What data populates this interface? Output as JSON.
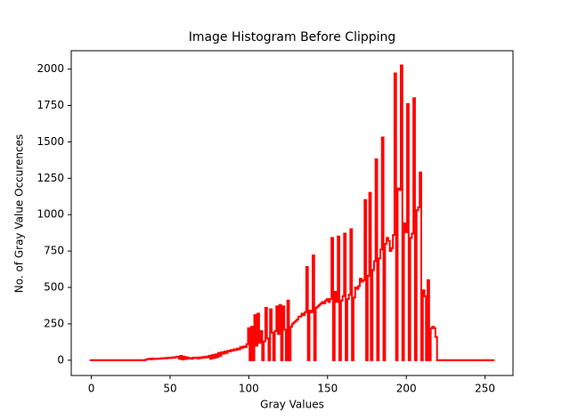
{
  "chart_data": {
    "type": "line",
    "title": "Image Histogram Before Clipping",
    "xlabel": "Gray Values",
    "ylabel": "No. of Gray Value Occurences",
    "step": true,
    "color": "#ff0000",
    "grid": false,
    "xlim": [
      -12.75,
      267.75
    ],
    "xticks": [
      0,
      50,
      100,
      150,
      200,
      250
    ],
    "ylim": [
      -105,
      2126
    ],
    "yticks": [
      0,
      250,
      500,
      750,
      1000,
      1250,
      1500,
      1750,
      2000
    ],
    "x": [
      0,
      1,
      2,
      3,
      4,
      5,
      6,
      7,
      8,
      9,
      10,
      11,
      12,
      13,
      14,
      15,
      16,
      17,
      18,
      19,
      20,
      21,
      22,
      23,
      24,
      25,
      26,
      27,
      28,
      29,
      30,
      31,
      32,
      33,
      34,
      35,
      36,
      37,
      38,
      39,
      40,
      41,
      42,
      43,
      44,
      45,
      46,
      47,
      48,
      49,
      50,
      51,
      52,
      53,
      54,
      55,
      56,
      57,
      58,
      59,
      60,
      61,
      62,
      63,
      64,
      65,
      66,
      67,
      68,
      69,
      70,
      71,
      72,
      73,
      74,
      75,
      76,
      77,
      78,
      79,
      80,
      81,
      82,
      83,
      84,
      85,
      86,
      87,
      88,
      89,
      90,
      91,
      92,
      93,
      94,
      95,
      96,
      97,
      98,
      99,
      100,
      101,
      102,
      103,
      104,
      105,
      106,
      107,
      108,
      109,
      110,
      111,
      112,
      113,
      114,
      115,
      116,
      117,
      118,
      119,
      120,
      121,
      122,
      123,
      124,
      125,
      126,
      127,
      128,
      129,
      130,
      131,
      132,
      133,
      134,
      135,
      136,
      137,
      138,
      139,
      140,
      141,
      142,
      143,
      144,
      145,
      146,
      147,
      148,
      149,
      150,
      151,
      152,
      153,
      154,
      155,
      156,
      157,
      158,
      159,
      160,
      161,
      162,
      163,
      164,
      165,
      166,
      167,
      168,
      169,
      170,
      171,
      172,
      173,
      174,
      175,
      176,
      177,
      178,
      179,
      180,
      181,
      182,
      183,
      184,
      185,
      186,
      187,
      188,
      189,
      190,
      191,
      192,
      193,
      194,
      195,
      196,
      197,
      198,
      199,
      200,
      201,
      202,
      203,
      204,
      205,
      206,
      207,
      208,
      209,
      210,
      211,
      212,
      213,
      214,
      215,
      216,
      217,
      218,
      219,
      220,
      221,
      222,
      223,
      224,
      225,
      226,
      227,
      228,
      229,
      230,
      231,
      232,
      233,
      234,
      235,
      236,
      237,
      238,
      239,
      240,
      241,
      242,
      243,
      244,
      245,
      246,
      247,
      248,
      249,
      250,
      251,
      252,
      253,
      254,
      255
    ],
    "values": [
      0,
      0,
      0,
      0,
      0,
      0,
      0,
      0,
      0,
      0,
      0,
      0,
      0,
      0,
      0,
      0,
      0,
      0,
      0,
      0,
      0,
      0,
      0,
      0,
      0,
      0,
      0,
      0,
      0,
      0,
      0,
      0,
      0,
      0,
      0,
      5,
      8,
      10,
      6,
      12,
      8,
      10,
      9,
      12,
      10,
      14,
      12,
      15,
      13,
      18,
      15,
      16,
      20,
      18,
      22,
      25,
      10,
      30,
      5,
      25,
      8,
      20,
      12,
      15,
      10,
      18,
      15,
      18,
      12,
      20,
      15,
      22,
      18,
      25,
      20,
      30,
      10,
      35,
      15,
      40,
      20,
      50,
      30,
      55,
      45,
      60,
      50,
      65,
      60,
      70,
      65,
      75,
      70,
      80,
      75,
      90,
      85,
      95,
      90,
      110,
      220,
      0,
      230,
      0,
      310,
      100,
      320,
      120,
      200,
      0,
      130,
      360,
      150,
      0,
      350,
      190,
      0,
      200,
      370,
      180,
      380,
      0,
      370,
      210,
      0,
      410,
      0,
      230,
      250,
      260,
      270,
      280,
      300,
      300,
      320,
      310,
      330,
      640,
      0,
      340,
      330,
      720,
      0,
      360,
      370,
      380,
      390,
      400,
      390,
      410,
      420,
      400,
      420,
      840,
      0,
      470,
      400,
      850,
      0,
      410,
      440,
      870,
      0,
      420,
      450,
      900,
      0,
      430,
      500,
      490,
      510,
      560,
      540,
      550,
      1100,
      0,
      580,
      1150,
      0,
      620,
      680,
      1380,
      0,
      700,
      760,
      1530,
      0,
      800,
      840,
      820,
      750,
      770,
      860,
      1970,
      0,
      1180,
      1170,
      2025,
      0,
      940,
      880,
      1760,
      0,
      840,
      870,
      1800,
      0,
      1030,
      1050,
      1290,
      0,
      480,
      440,
      0,
      550,
      0,
      220,
      230,
      220,
      160,
      0,
      0,
      0,
      0,
      0,
      0,
      0,
      0,
      0,
      0,
      0,
      0,
      0,
      0,
      0,
      0,
      0,
      0,
      0,
      0,
      0,
      0,
      0,
      0,
      0,
      0,
      0,
      0,
      0,
      0,
      0,
      0,
      0,
      0,
      0,
      0
    ]
  }
}
